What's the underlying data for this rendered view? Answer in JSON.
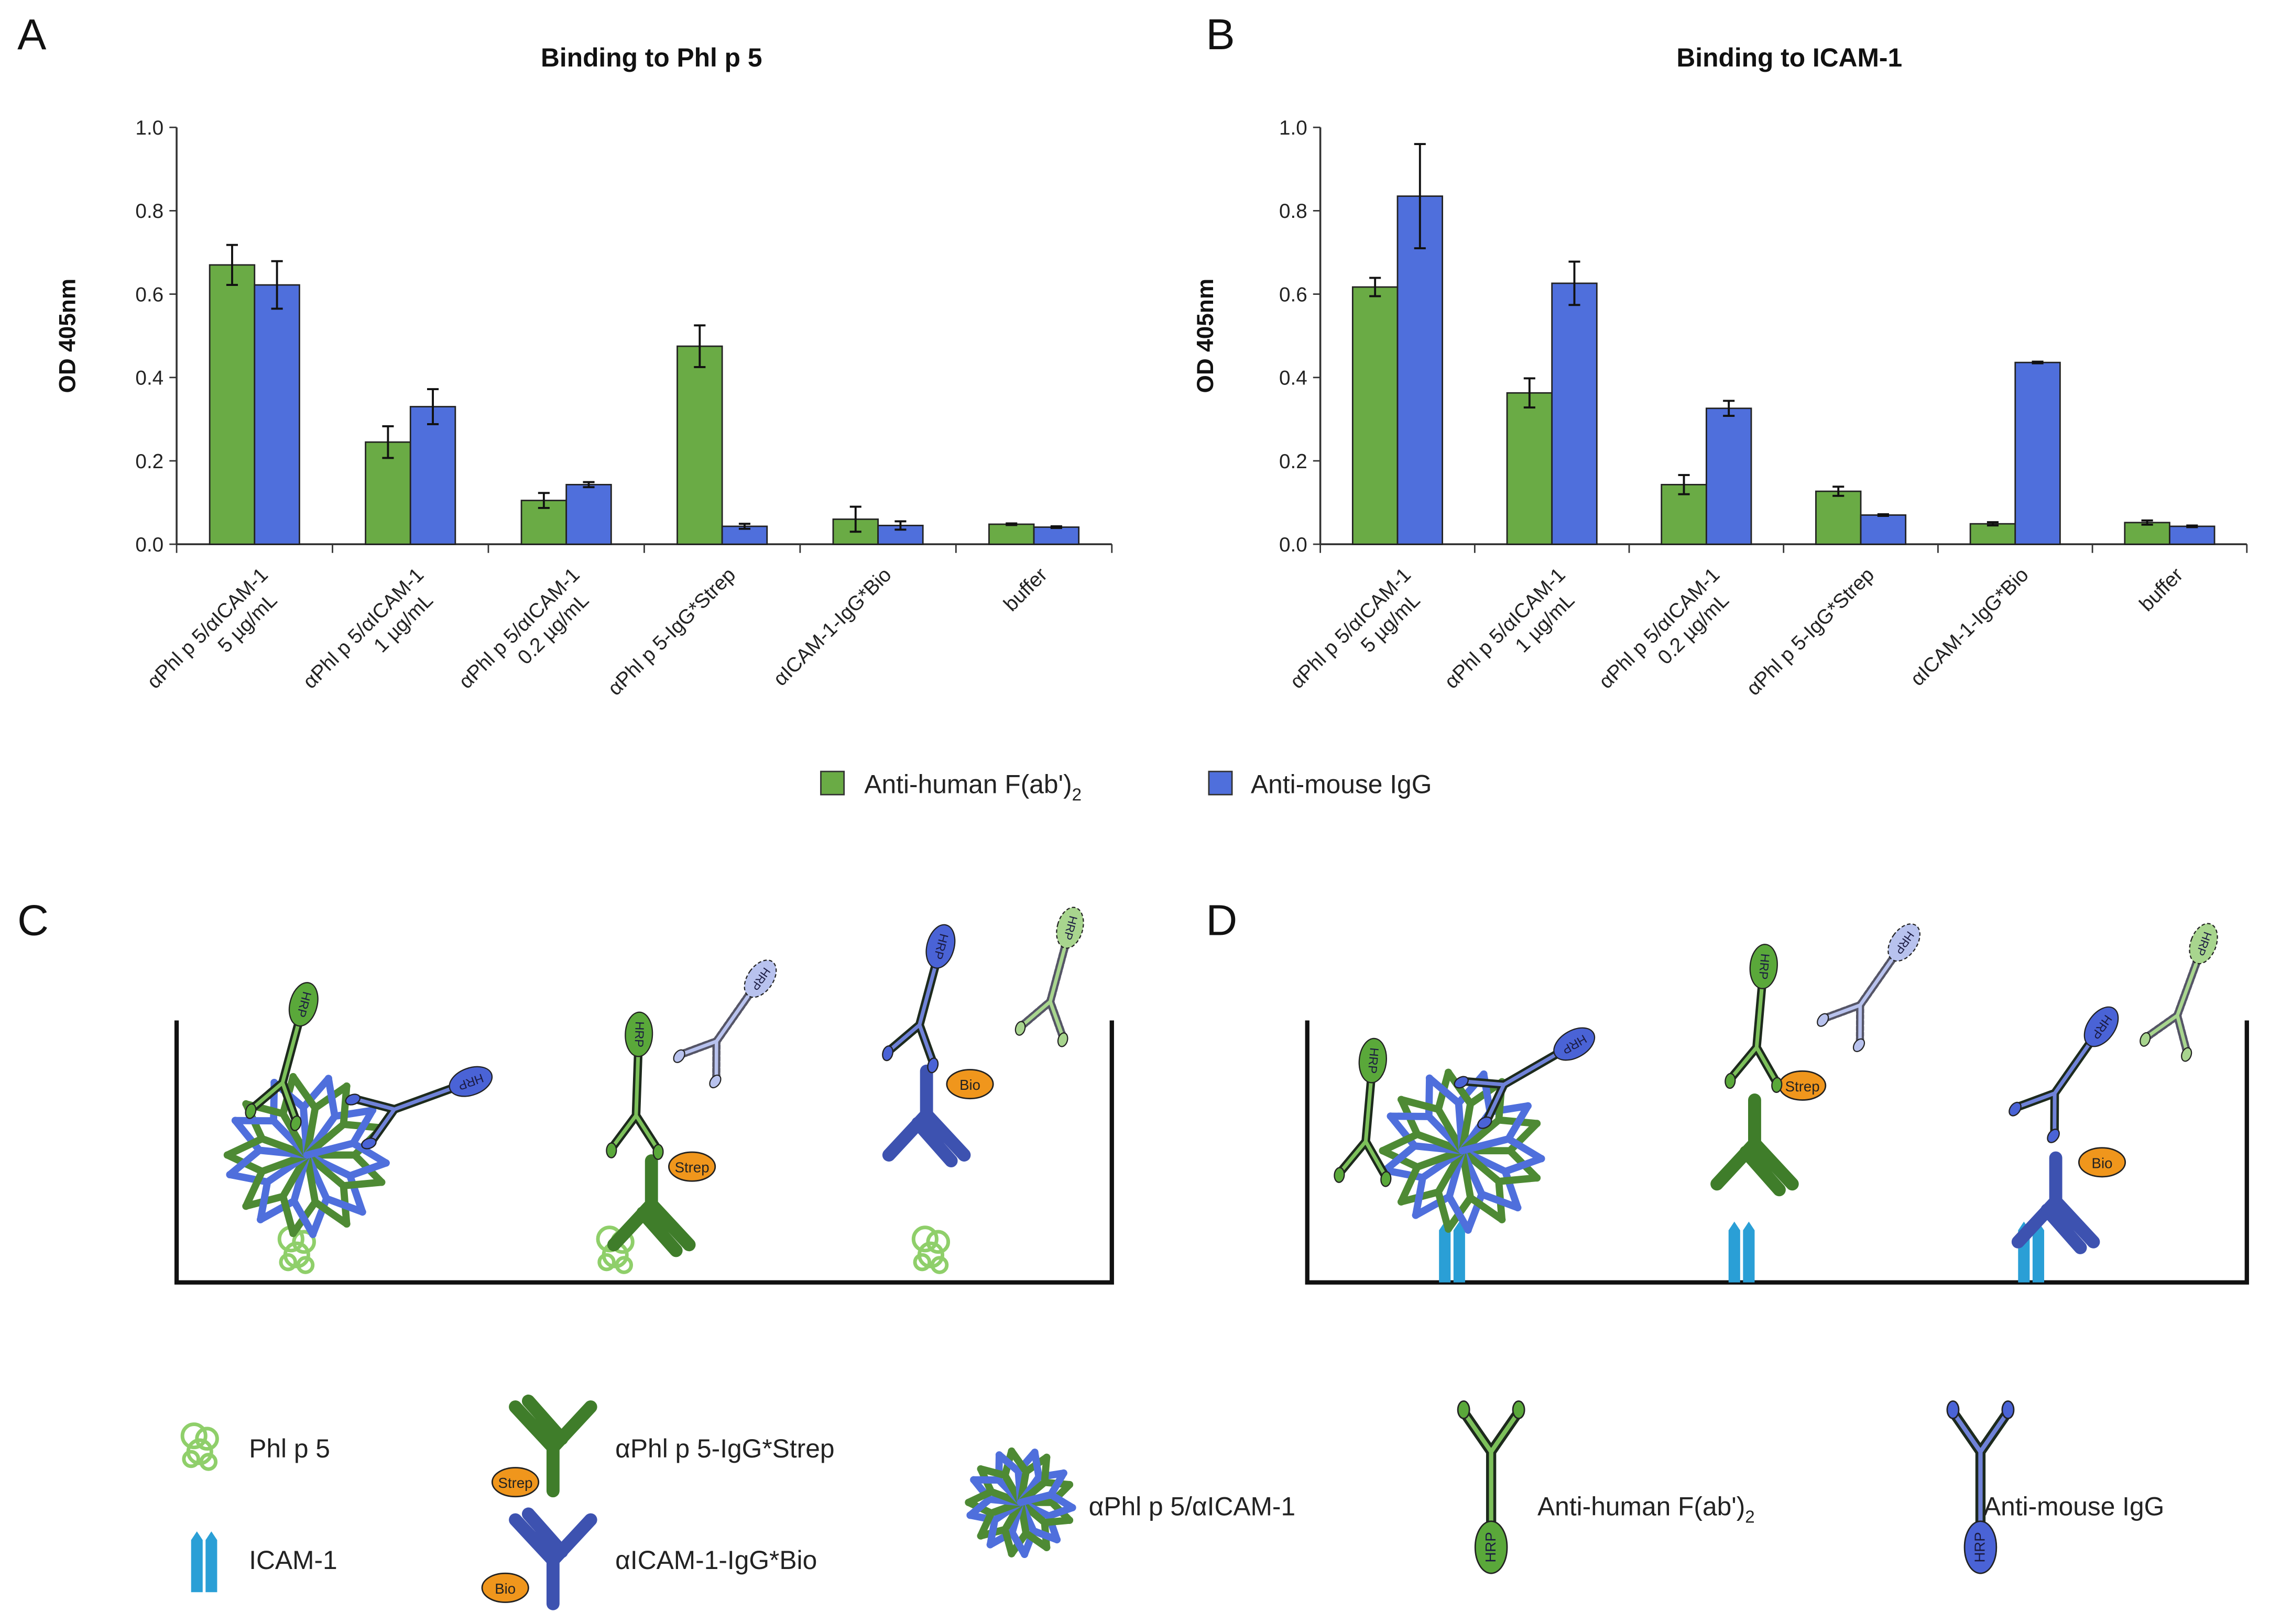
{
  "panels": {
    "a": "A",
    "b": "B",
    "c": "C",
    "d": "D"
  },
  "colors": {
    "anti_human": "#6aab45",
    "anti_mouse": "#4f6fdc",
    "capture_green": "#3f7d2a",
    "capture_blue": "#3d52b0",
    "tag_orange": "#f0961c",
    "phl_p5": "#8fcf6a",
    "icam1": "#2a9fd6"
  },
  "chart_data": [
    {
      "type": "bar",
      "title": "Binding to Phl p 5",
      "ylabel": "OD 405nm",
      "xlabel": "",
      "ylim": [
        0,
        1.0
      ],
      "yticks": [
        "0.0",
        "0.2",
        "0.4",
        "0.6",
        "0.8",
        "1.0"
      ],
      "categories": [
        [
          "αPhl p 5/αICAM-1",
          "5 µg/mL"
        ],
        [
          "αPhl p 5/αICAM-1",
          "1 µg/mL"
        ],
        [
          "αPhl p 5/αICAM-1",
          "0.2 µg/mL"
        ],
        [
          "αPhl p 5-IgG*Strep"
        ],
        [
          "αICAM-1-IgG*Bio"
        ],
        [
          "buffer"
        ]
      ],
      "series": [
        {
          "name": "Anti-human F(ab')2",
          "values": [
            0.67,
            0.245,
            0.105,
            0.475,
            0.06,
            0.048
          ],
          "errors": [
            0.048,
            0.038,
            0.018,
            0.05,
            0.03,
            0.002
          ]
        },
        {
          "name": "Anti-mouse IgG",
          "values": [
            0.622,
            0.33,
            0.143,
            0.043,
            0.045,
            0.041
          ],
          "errors": [
            0.057,
            0.042,
            0.006,
            0.006,
            0.01,
            0.002
          ]
        }
      ],
      "grid": false
    },
    {
      "type": "bar",
      "title": "Binding to ICAM-1",
      "ylabel": "OD 405nm",
      "xlabel": "",
      "ylim": [
        0,
        1.0
      ],
      "yticks": [
        "0.0",
        "0.2",
        "0.4",
        "0.6",
        "0.8",
        "1.0"
      ],
      "categories": [
        [
          "αPhl p 5/αICAM-1",
          "5 µg/mL"
        ],
        [
          "αPhl p 5/αICAM-1",
          "1 µg/mL"
        ],
        [
          "αPhl p 5/αICAM-1",
          "0.2 µg/mL"
        ],
        [
          "αPhl p 5-IgG*Strep"
        ],
        [
          "αICAM-1-IgG*Bio"
        ],
        [
          "buffer"
        ]
      ],
      "series": [
        {
          "name": "Anti-human F(ab')2",
          "values": [
            0.617,
            0.363,
            0.143,
            0.127,
            0.049,
            0.052
          ],
          "errors": [
            0.022,
            0.035,
            0.023,
            0.011,
            0.004,
            0.005
          ]
        },
        {
          "name": "Anti-mouse IgG",
          "values": [
            0.835,
            0.626,
            0.326,
            0.07,
            0.436,
            0.043
          ],
          "errors": [
            0.125,
            0.052,
            0.018,
            0.002,
            0.002,
            0.002
          ]
        }
      ],
      "grid": false
    }
  ],
  "chart_legend": {
    "anti_human_main": "Anti-human F(ab')",
    "anti_human_sub": "2",
    "anti_mouse": "Anti-mouse IgG",
    "placement": "bottom-center"
  },
  "diagram": {
    "hrp_label": "HRP",
    "strep_label": "Strep",
    "bio_label": "Bio"
  },
  "legend": {
    "phl_p5": "Phl p 5",
    "icam1": "ICAM-1",
    "strep_ab": "αPhl p 5-IgG*Strep",
    "bio_ab": "αICAM-1-IgG*Bio",
    "bispecific": "αPhl p 5/αICAM-1",
    "anti_human_main": "Anti-human F(ab')",
    "anti_human_sub": "2",
    "anti_mouse": "Anti-mouse IgG"
  }
}
